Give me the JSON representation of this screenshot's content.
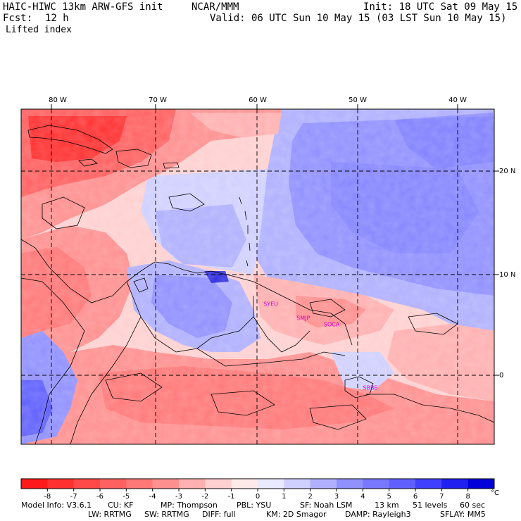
{
  "header": {
    "model": "HAIC-HIWC 13km ARW-GFS init",
    "org": "NCAR/MMM",
    "init": "Init: 18 UTC Sat 09 May 15",
    "fcst_label": "Fcst:",
    "fcst_value": "12 h",
    "valid": "Valid: 06 UTC Sun 10 May 15 (03 LST Sun 10 May 15)",
    "field": "Lifted index"
  },
  "map": {
    "lon_labels": [
      "80 W",
      "70 W",
      "60 W",
      "50 W",
      "40 W"
    ],
    "lat_labels": [
      "20 N",
      "10 N",
      "0"
    ],
    "stations": [
      {
        "code": "SYEU",
        "lon": -58.4,
        "lat": 6.8
      },
      {
        "code": "SMJP",
        "lon": -55.2,
        "lat": 5.4
      },
      {
        "code": "SOCA",
        "lon": -52.4,
        "lat": 4.8
      },
      {
        "code": "SBBE",
        "lon": -48.6,
        "lat": -1.4
      }
    ]
  },
  "colorbar": {
    "ticks": [
      "-8",
      "-7",
      "-6",
      "-5",
      "-4",
      "-3",
      "-2",
      "-1",
      "0",
      "1",
      "2",
      "3",
      "4",
      "5",
      "6",
      "7",
      "8"
    ],
    "unit": "°C",
    "colors": [
      "#ff1a1a",
      "#ff3030",
      "#ff4848",
      "#ff6060",
      "#ff7878",
      "#ff9090",
      "#ffb0b0",
      "#ffd0d0",
      "#ffeaea",
      "#eaeaff",
      "#d0d0ff",
      "#b0b0ff",
      "#9090ff",
      "#7878ff",
      "#6060ff",
      "#4040ff",
      "#2020f0",
      "#0000d8"
    ]
  },
  "footer": {
    "line1": [
      "Model Info: V3.6.1",
      "CU: KF",
      "MP: Thompson",
      "PBL: YSU",
      "SF: Noah LSM",
      "13 km",
      "51 levels",
      "60 sec"
    ],
    "line2": [
      "LW: RRTMG",
      "SW: RRTMG",
      "DIFF: full",
      "KM: 2D Smagor",
      "DAMP: Rayleigh3",
      "SFLAY: MM5"
    ]
  }
}
